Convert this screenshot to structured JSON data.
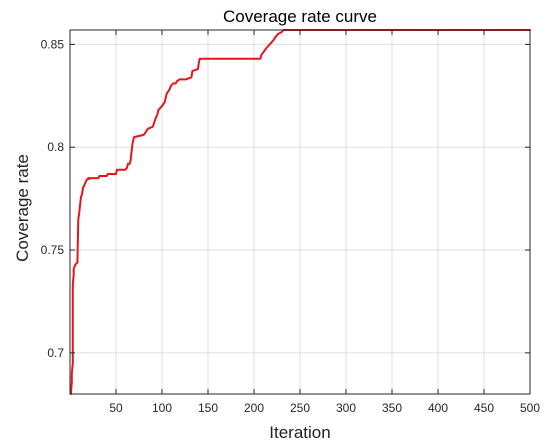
{
  "chart_data": {
    "type": "line",
    "title": "Coverage rate curve",
    "xlabel": "Iteration",
    "ylabel": "Coverage rate",
    "xlim": [
      0,
      500
    ],
    "ylim": [
      0.68,
      0.857
    ],
    "xticks": [
      50,
      100,
      150,
      200,
      250,
      300,
      350,
      400,
      450,
      500
    ],
    "xtick_labels": [
      "50",
      "100",
      "150",
      "200",
      "250",
      "300",
      "350",
      "400",
      "450",
      "500"
    ],
    "yticks": [
      0.7,
      0.75,
      0.8,
      0.85
    ],
    "ytick_labels": [
      "0.7",
      "0.75",
      "0.8",
      "0.85"
    ],
    "grid": true,
    "series": [
      {
        "color": "#e8141c",
        "x": [
          1,
          2,
          2,
          3,
          3,
          4,
          4,
          5,
          6,
          8,
          9,
          10,
          11,
          12,
          13,
          14,
          15,
          16,
          17,
          18,
          20,
          21,
          22,
          23,
          31,
          32,
          40,
          41,
          50,
          51,
          60,
          62,
          63,
          65,
          66,
          67,
          68,
          69,
          70,
          71,
          80,
          82,
          83,
          85,
          90,
          93,
          95,
          96,
          100,
          103,
          105,
          108,
          110,
          112,
          115,
          116,
          119,
          121,
          124,
          126,
          132,
          133,
          139,
          140,
          141,
          142,
          143,
          148,
          207,
          208,
          210,
          213,
          215,
          219,
          221,
          224,
          226,
          230,
          232,
          500
        ],
        "y": [
          0.68,
          0.686,
          0.69,
          0.695,
          0.733,
          0.738,
          0.741,
          0.742,
          0.743,
          0.744,
          0.765,
          0.768,
          0.772,
          0.776,
          0.777,
          0.78,
          0.781,
          0.782,
          0.783,
          0.784,
          0.785,
          0.7845,
          0.785,
          0.785,
          0.785,
          0.786,
          0.786,
          0.787,
          0.787,
          0.789,
          0.789,
          0.79,
          0.792,
          0.792,
          0.794,
          0.798,
          0.802,
          0.804,
          0.805,
          0.805,
          0.806,
          0.807,
          0.808,
          0.809,
          0.81,
          0.814,
          0.816,
          0.818,
          0.82,
          0.822,
          0.826,
          0.828,
          0.83,
          0.831,
          0.831,
          0.832,
          0.833,
          0.833,
          0.833,
          0.833,
          0.834,
          0.837,
          0.838,
          0.841,
          0.843,
          0.843,
          0.843,
          0.843,
          0.843,
          0.845,
          0.846,
          0.848,
          0.849,
          0.851,
          0.852,
          0.854,
          0.855,
          0.856,
          0.857,
          0.857
        ]
      }
    ]
  }
}
